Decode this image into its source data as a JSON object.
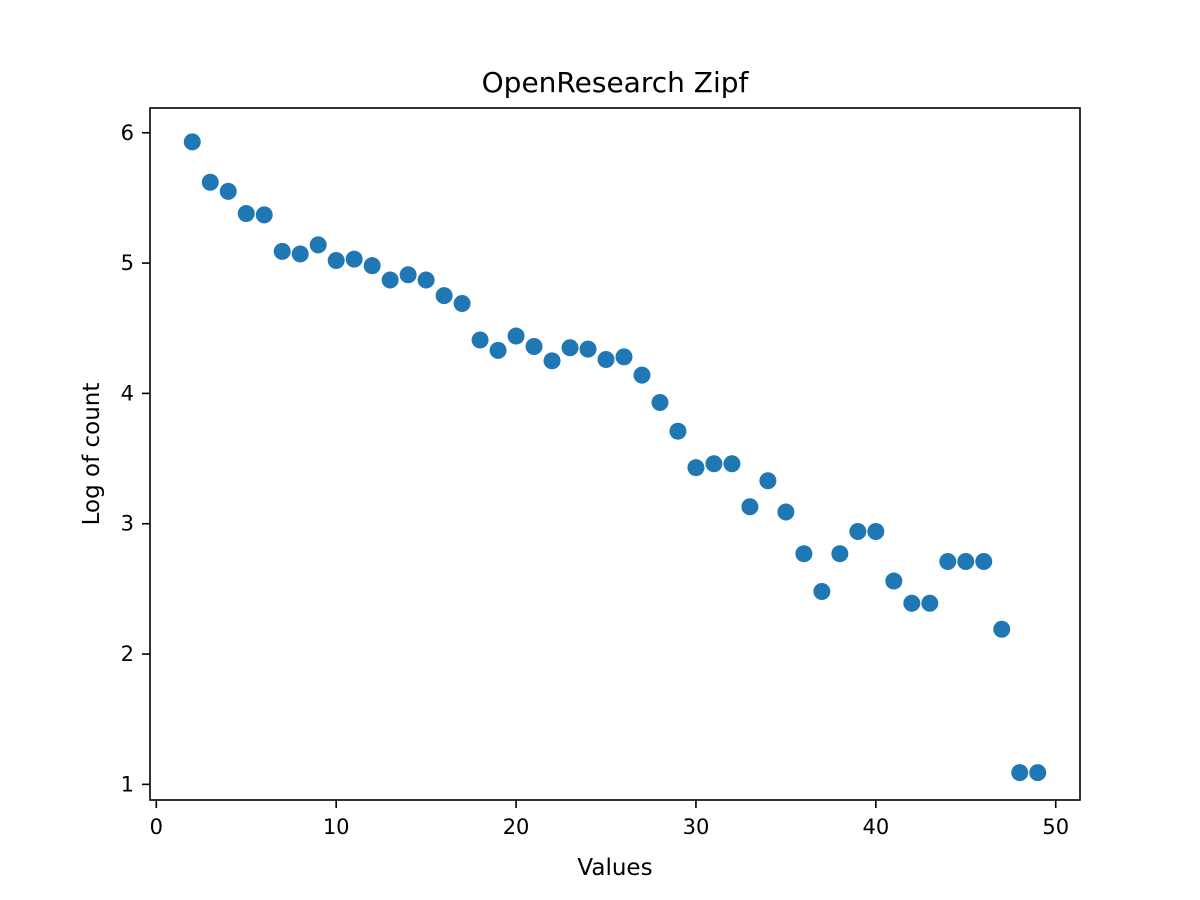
{
  "chart_data": {
    "type": "scatter",
    "title": "OpenResearch Zipf",
    "xlabel": "Values",
    "ylabel": "Log of count",
    "xlim": [
      -0.35,
      51.35
    ],
    "ylim": [
      0.88,
      6.19
    ],
    "xticks": [
      0,
      10,
      20,
      30,
      40,
      50
    ],
    "yticks": [
      1,
      2,
      3,
      4,
      5,
      6
    ],
    "grid": false,
    "marker_color": "#1f77b4",
    "points": [
      {
        "x": 2,
        "y": 5.93
      },
      {
        "x": 3,
        "y": 5.62
      },
      {
        "x": 4,
        "y": 5.55
      },
      {
        "x": 5,
        "y": 5.38
      },
      {
        "x": 6,
        "y": 5.37
      },
      {
        "x": 7,
        "y": 5.09
      },
      {
        "x": 8,
        "y": 5.07
      },
      {
        "x": 9,
        "y": 5.14
      },
      {
        "x": 10,
        "y": 5.02
      },
      {
        "x": 11,
        "y": 5.03
      },
      {
        "x": 12,
        "y": 4.98
      },
      {
        "x": 13,
        "y": 4.87
      },
      {
        "x": 14,
        "y": 4.91
      },
      {
        "x": 15,
        "y": 4.87
      },
      {
        "x": 16,
        "y": 4.75
      },
      {
        "x": 17,
        "y": 4.69
      },
      {
        "x": 18,
        "y": 4.41
      },
      {
        "x": 19,
        "y": 4.33
      },
      {
        "x": 20,
        "y": 4.44
      },
      {
        "x": 21,
        "y": 4.36
      },
      {
        "x": 22,
        "y": 4.25
      },
      {
        "x": 23,
        "y": 4.35
      },
      {
        "x": 24,
        "y": 4.34
      },
      {
        "x": 25,
        "y": 4.26
      },
      {
        "x": 26,
        "y": 4.28
      },
      {
        "x": 27,
        "y": 4.14
      },
      {
        "x": 28,
        "y": 3.93
      },
      {
        "x": 29,
        "y": 3.71
      },
      {
        "x": 30,
        "y": 3.43
      },
      {
        "x": 31,
        "y": 3.46
      },
      {
        "x": 32,
        "y": 3.46
      },
      {
        "x": 33,
        "y": 3.13
      },
      {
        "x": 34,
        "y": 3.33
      },
      {
        "x": 35,
        "y": 3.09
      },
      {
        "x": 36,
        "y": 2.77
      },
      {
        "x": 37,
        "y": 2.48
      },
      {
        "x": 38,
        "y": 2.77
      },
      {
        "x": 39,
        "y": 2.94
      },
      {
        "x": 40,
        "y": 2.94
      },
      {
        "x": 41,
        "y": 2.56
      },
      {
        "x": 42,
        "y": 2.39
      },
      {
        "x": 43,
        "y": 2.39
      },
      {
        "x": 44,
        "y": 2.71
      },
      {
        "x": 45,
        "y": 2.71
      },
      {
        "x": 46,
        "y": 2.71
      },
      {
        "x": 47,
        "y": 2.19
      },
      {
        "x": 48,
        "y": 1.09
      },
      {
        "x": 49,
        "y": 1.09
      }
    ]
  }
}
